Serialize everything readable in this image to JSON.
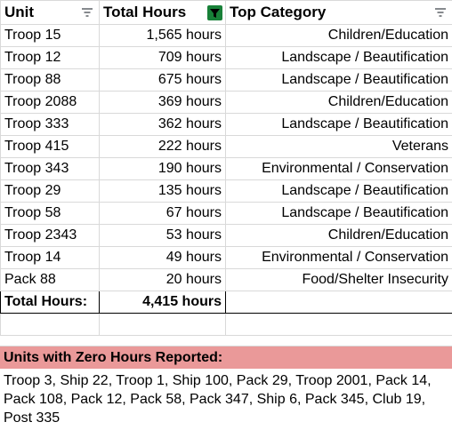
{
  "headers": {
    "unit": "Unit",
    "total_hours": "Total Hours",
    "top_category": "Top Category"
  },
  "rows": [
    {
      "unit": "Troop 15",
      "hours": "1,565 hours",
      "category": "Children/Education"
    },
    {
      "unit": "Troop 12",
      "hours": "709 hours",
      "category": "Landscape / Beautification"
    },
    {
      "unit": "Troop 88",
      "hours": "675 hours",
      "category": "Landscape / Beautification"
    },
    {
      "unit": "Troop 2088",
      "hours": "369 hours",
      "category": "Children/Education"
    },
    {
      "unit": "Troop 333",
      "hours": "362 hours",
      "category": "Landscape / Beautification"
    },
    {
      "unit": "Troop 415",
      "hours": "222 hours",
      "category": "Veterans"
    },
    {
      "unit": "Troop 343",
      "hours": "190 hours",
      "category": "Environmental / Conservation"
    },
    {
      "unit": "Troop 29",
      "hours": "135 hours",
      "category": "Landscape / Beautification"
    },
    {
      "unit": "Troop 58",
      "hours": "67 hours",
      "category": "Landscape / Beautification"
    },
    {
      "unit": "Troop 2343",
      "hours": "53 hours",
      "category": "Children/Education"
    },
    {
      "unit": "Troop 14",
      "hours": "49 hours",
      "category": "Environmental / Conservation"
    },
    {
      "unit": "Pack 88",
      "hours": "20 hours",
      "category": "Food/Shelter Insecurity"
    }
  ],
  "total": {
    "label": "Total Hours:",
    "value": "4,415 hours"
  },
  "zero_hours": {
    "title": "Units with Zero Hours Reported:",
    "list": "Troop 3, Ship 22, Troop 1, Ship 100, Pack 29, Troop 2001, Pack 14, Pack 108, Pack 12, Pack 58, Pack 347, Ship 6, Pack 345, Club 19, Post 335"
  },
  "colors": {
    "zero_header_bg": "#ea9999",
    "active_filter": "#188038",
    "filter_icon": "#5f6368"
  },
  "icons": {
    "unit_filter": "filter-icon",
    "hours_filter": "filter-active-icon",
    "category_filter": "filter-icon"
  }
}
